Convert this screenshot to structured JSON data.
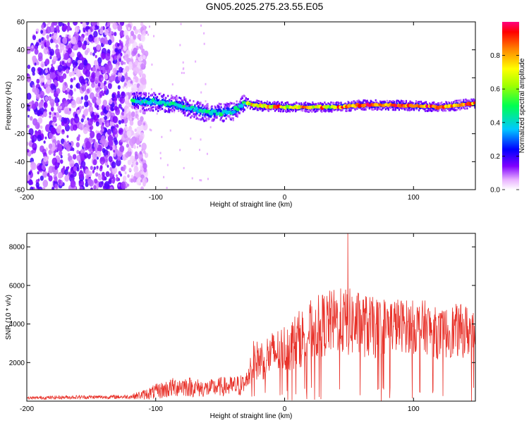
{
  "title": "GN05.2025.275.23.55.E05",
  "chart_data": [
    {
      "type": "heatmap",
      "title": "GN05.2025.275.23.55.E05",
      "xlabel": "Height of straight line (km)",
      "ylabel": "Frequency (Hz)",
      "xlim": [
        -200,
        148
      ],
      "ylim": [
        -60,
        60
      ],
      "xticks": [
        "-200",
        "-100",
        "0",
        "100"
      ],
      "yticks": [
        "60",
        "40",
        "20",
        "0",
        "-20",
        "-40",
        "-60"
      ],
      "colorbar": {
        "label": "Normalized spectral amplitude",
        "range": [
          0,
          1
        ],
        "ticks": [
          "0.0",
          "0.2",
          "0.4",
          "0.6",
          "0.8"
        ],
        "colors": [
          "#ffffff",
          "#8000ff",
          "#0000ff",
          "#00c0ff",
          "#00ff60",
          "#a0ff00",
          "#ffff00",
          "#ff8000",
          "#ff0000",
          "#ff0080"
        ]
      },
      "regions": [
        {
          "name": "broadband noise",
          "x_range": [
            -200,
            -115
          ],
          "freq_range": [
            -60,
            60
          ],
          "amplitude": 0.15
        },
        {
          "name": "signal track",
          "x_range": [
            -118,
            148
          ],
          "center_freq_hz": 0,
          "amplitude_range": [
            0.3,
            1.0
          ]
        }
      ],
      "ridge": {
        "x": [
          -118,
          -100,
          -80,
          -60,
          -50,
          -40,
          -30,
          -20,
          0,
          20,
          40,
          60,
          80,
          100,
          120,
          140,
          148
        ],
        "freq": [
          3,
          3,
          0,
          -5,
          -5,
          -4,
          2,
          0,
          -1,
          -1,
          -1,
          0.5,
          0.5,
          0,
          -1,
          1,
          2
        ]
      }
    },
    {
      "type": "line",
      "xlabel": "Height of straight line (km)",
      "ylabel": "SNR (10 * v/v)",
      "xlim": [
        -200,
        148
      ],
      "ylim": [
        0,
        8700
      ],
      "xticks": [
        "-200",
        "-100",
        "0",
        "100"
      ],
      "yticks": [
        "2000",
        "4000",
        "6000",
        "8000"
      ],
      "series": [
        {
          "name": "SNR",
          "color": "#e8322a",
          "x": [
            -200,
            -180,
            -160,
            -140,
            -120,
            -110,
            -100,
            -90,
            -80,
            -70,
            -60,
            -50,
            -40,
            -30,
            -25,
            -20,
            -10,
            0,
            10,
            20,
            30,
            40,
            50,
            60,
            70,
            80,
            90,
            100,
            110,
            120,
            130,
            140,
            148
          ],
          "values": [
            150,
            180,
            200,
            200,
            220,
            300,
            450,
            600,
            750,
            650,
            600,
            700,
            700,
            800,
            2000,
            2000,
            2300,
            2600,
            3000,
            3500,
            3800,
            4000,
            3900,
            3800,
            3600,
            3800,
            3800,
            3700,
            3700,
            3300,
            3500,
            3500,
            3500
          ],
          "noise": [
            80,
            90,
            100,
            100,
            110,
            250,
            400,
            500,
            550,
            500,
            450,
            500,
            550,
            600,
            1000,
            1100,
            1200,
            1300,
            1500,
            1600,
            1700,
            1700,
            1800,
            1700,
            1600,
            1500,
            1400,
            1400,
            1400,
            1300,
            1400,
            1400,
            1400
          ],
          "peak": {
            "x": 49,
            "y": 8700
          }
        }
      ]
    }
  ]
}
